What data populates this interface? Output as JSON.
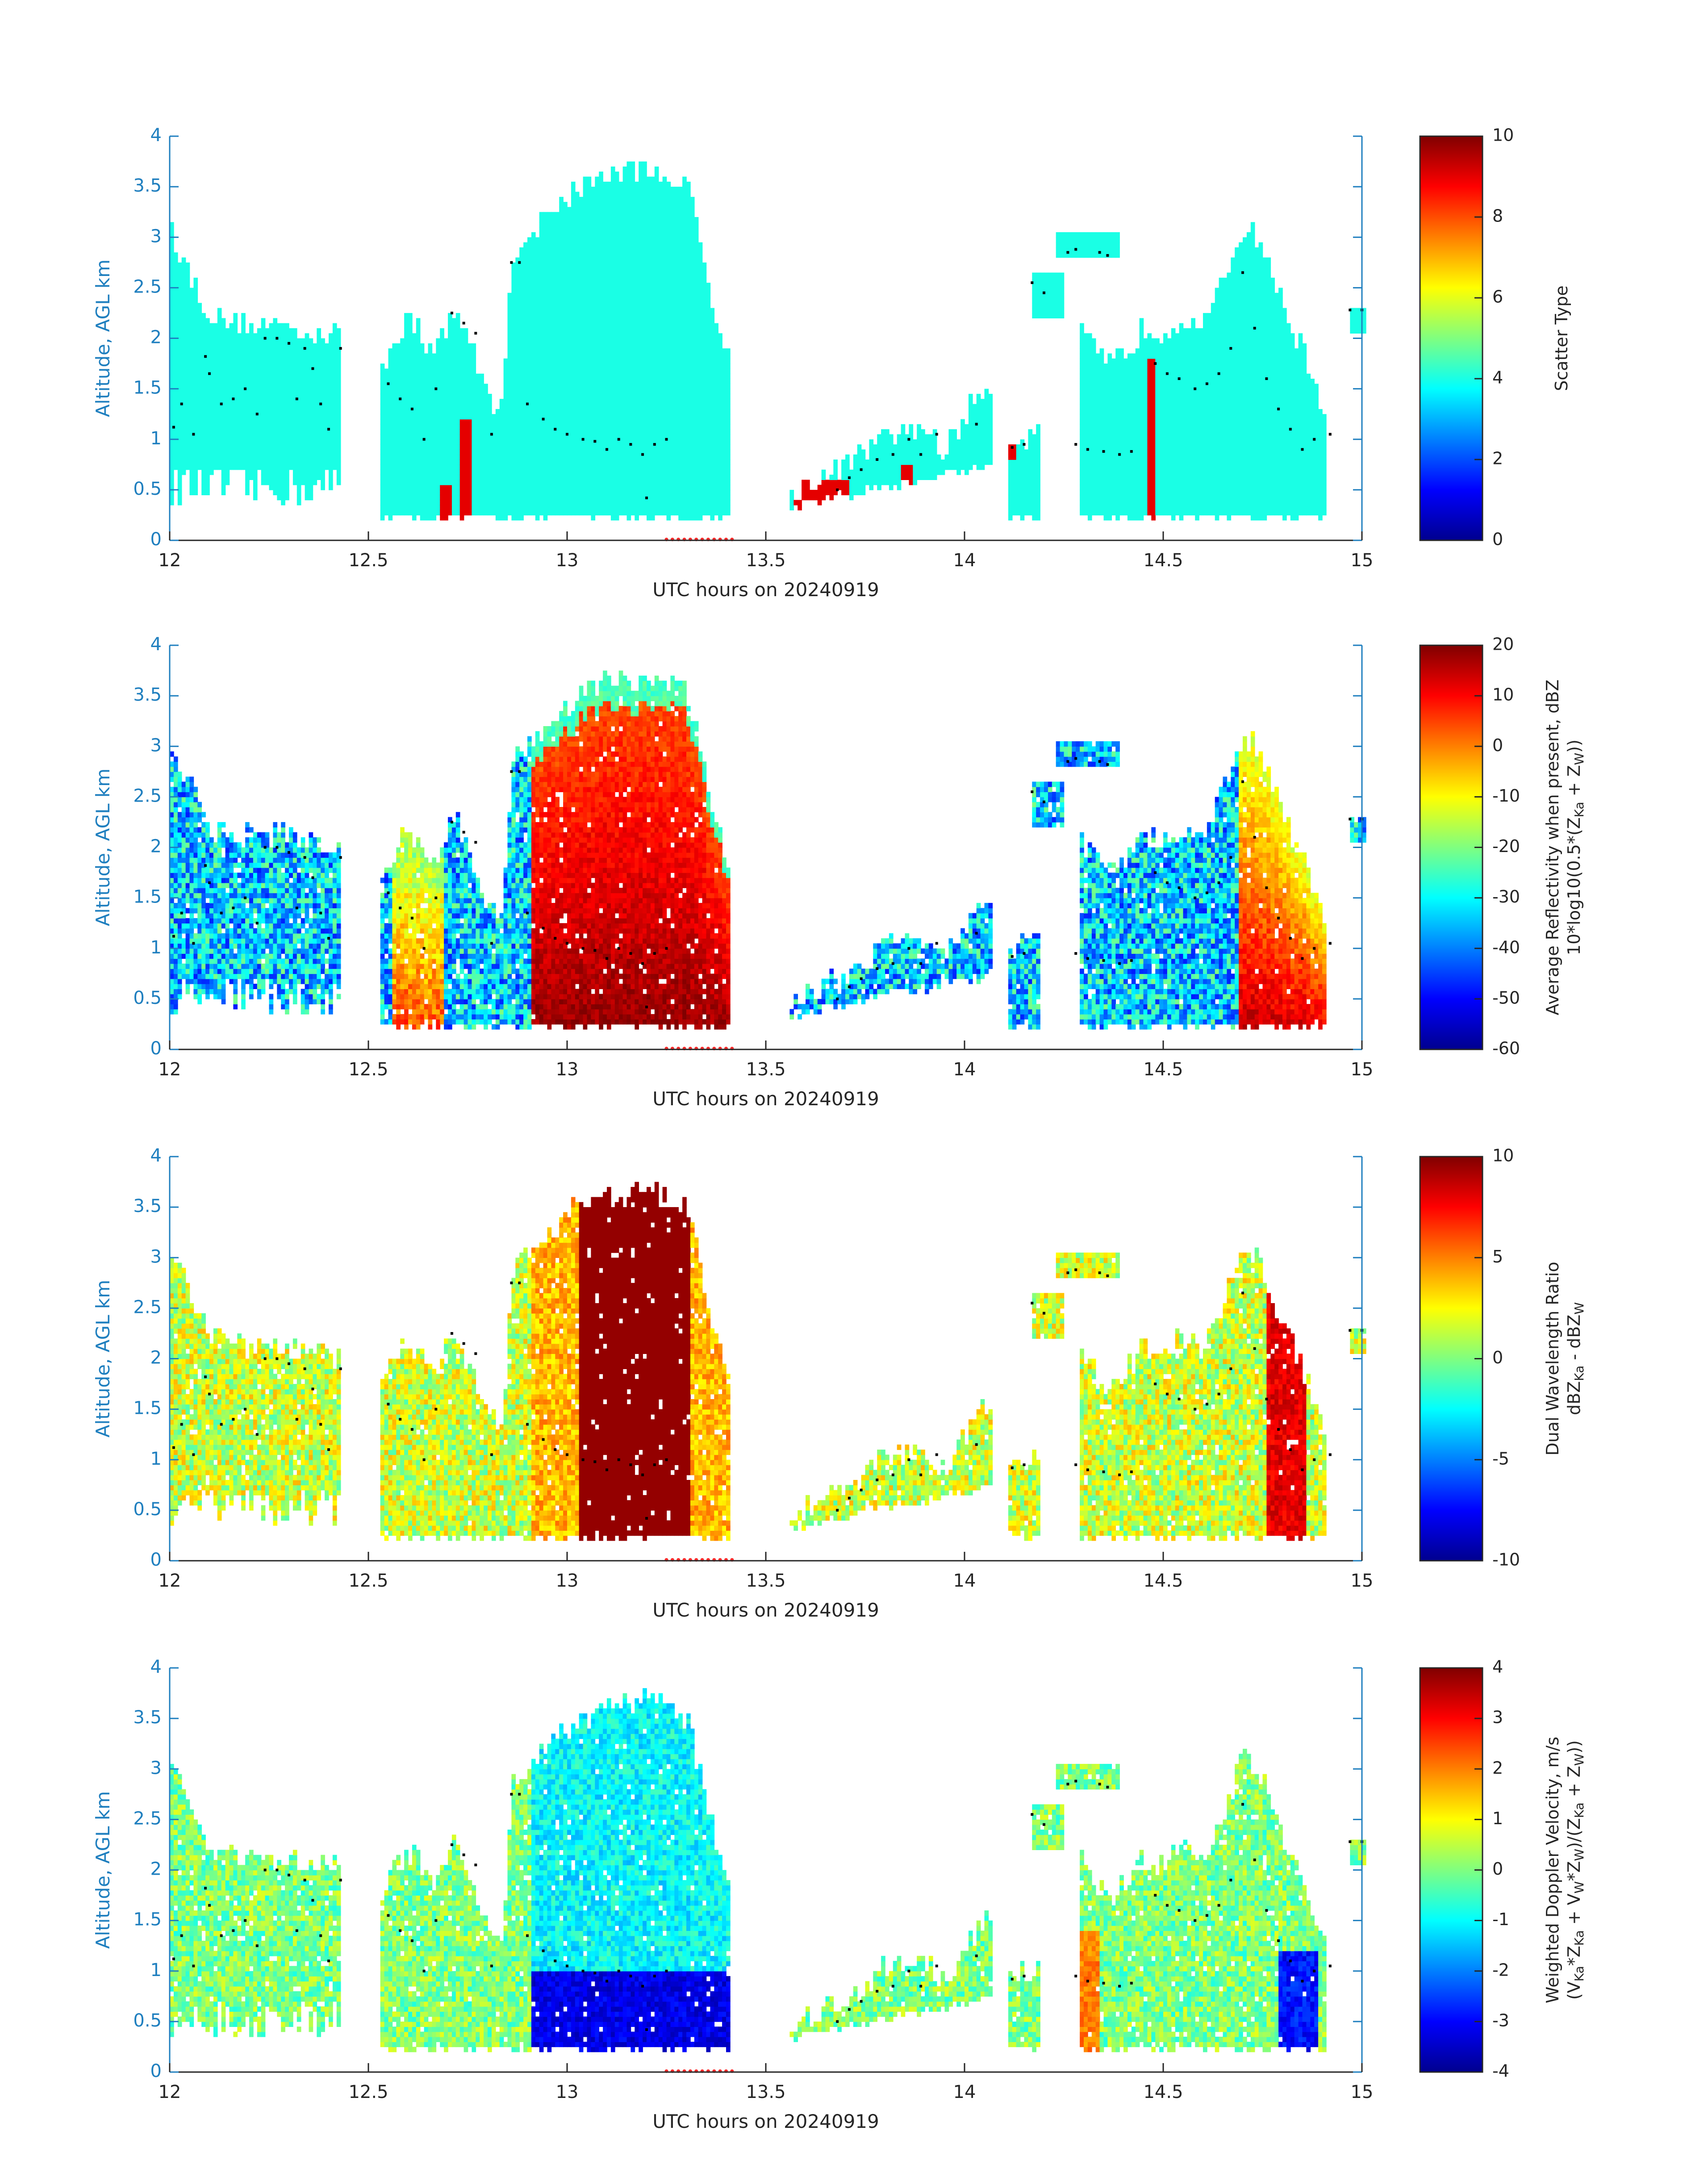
{
  "figure": {
    "x_unit_label": "UTC hours on 20240919"
  },
  "chart_data": [
    {
      "type": "heatmap",
      "panel": "scatter-type",
      "xlabel": "UTC hours on 20240919",
      "ylabel": "Altitude, AGL km",
      "xlim": [
        12,
        15
      ],
      "ylim": [
        0,
        4
      ],
      "x_ticks": [
        "12",
        "12.5",
        "13",
        "13.5",
        "14",
        "14.5",
        "15"
      ],
      "y_ticks": [
        "0",
        "0.5",
        "1",
        "1.5",
        "2",
        "2.5",
        "3",
        "3.5",
        "4"
      ],
      "colorbar": {
        "label_lines": [
          "Scatter Type"
        ],
        "range": [
          0,
          10
        ],
        "ticks": [
          "0",
          "2",
          "4",
          "6",
          "8",
          "10"
        ],
        "colormap": "jet"
      },
      "dominant_value": 4,
      "secondary_value": 9
    },
    {
      "type": "heatmap",
      "panel": "average-reflectivity",
      "xlabel": "UTC hours on 20240919",
      "ylabel": "Altitude, AGL km",
      "xlim": [
        12,
        15
      ],
      "ylim": [
        0,
        4
      ],
      "x_ticks": [
        "12",
        "12.5",
        "13",
        "13.5",
        "14",
        "14.5",
        "15"
      ],
      "y_ticks": [
        "0",
        "0.5",
        "1",
        "1.5",
        "2",
        "2.5",
        "3",
        "3.5",
        "4"
      ],
      "colorbar": {
        "label_lines": [
          "Average Reflectivity when present, dBZ",
          "10*log10(0.5*(Z",
          "Ka",
          " + Z",
          "W",
          "))"
        ],
        "range": [
          -60,
          20
        ],
        "ticks": [
          "-60",
          "-50",
          "-40",
          "-30",
          "-20",
          "-10",
          "0",
          "10",
          "20"
        ],
        "colormap": "jet"
      }
    },
    {
      "type": "heatmap",
      "panel": "dual-wavelength-ratio",
      "xlabel": "UTC hours on 20240919",
      "ylabel": "Altitude, AGL km",
      "xlim": [
        12,
        15
      ],
      "ylim": [
        0,
        4
      ],
      "x_ticks": [
        "12",
        "12.5",
        "13",
        "13.5",
        "14",
        "14.5",
        "15"
      ],
      "y_ticks": [
        "0",
        "0.5",
        "1",
        "1.5",
        "2",
        "2.5",
        "3",
        "3.5",
        "4"
      ],
      "colorbar": {
        "label_lines": [
          "Dual Wavelength Ratio",
          "dBZ",
          "Ka",
          " - dBZ",
          "W"
        ],
        "range": [
          -10,
          10
        ],
        "ticks": [
          "-10",
          "-5",
          "0",
          "5",
          "10"
        ],
        "colormap": "jet"
      }
    },
    {
      "type": "heatmap",
      "panel": "weighted-doppler-velocity",
      "xlabel": "UTC hours on 20240919",
      "ylabel": "Altitude, AGL km",
      "xlim": [
        12,
        15
      ],
      "ylim": [
        0,
        4
      ],
      "x_ticks": [
        "12",
        "12.5",
        "13",
        "13.5",
        "14",
        "14.5",
        "15"
      ],
      "y_ticks": [
        "0",
        "0.5",
        "1",
        "1.5",
        "2",
        "2.5",
        "3",
        "3.5",
        "4"
      ],
      "colorbar": {
        "label_lines": [
          "Weighted Doppler Velocity, m/s",
          "(V",
          "Ka",
          "*Z",
          "Ka",
          " + V",
          "W",
          "*Z",
          "W",
          ")/(Z",
          "Ka",
          " + Z",
          "W",
          "))"
        ],
        "range": [
          -4,
          4
        ],
        "ticks": [
          "-4",
          "-3",
          "-2",
          "-1",
          "0",
          "1",
          "2",
          "3",
          "4"
        ],
        "colormap": "jet"
      }
    }
  ],
  "cloud_base_km": [
    [
      12.01,
      1.12
    ],
    [
      12.03,
      1.35
    ],
    [
      12.06,
      1.05
    ],
    [
      12.09,
      1.82
    ],
    [
      12.1,
      1.65
    ],
    [
      12.13,
      1.35
    ],
    [
      12.16,
      1.4
    ],
    [
      12.19,
      1.5
    ],
    [
      12.22,
      1.25
    ],
    [
      12.24,
      2.0
    ],
    [
      12.27,
      2.0
    ],
    [
      12.3,
      1.95
    ],
    [
      12.32,
      1.4
    ],
    [
      12.34,
      1.9
    ],
    [
      12.36,
      1.7
    ],
    [
      12.38,
      1.35
    ],
    [
      12.4,
      1.1
    ],
    [
      12.43,
      1.9
    ],
    [
      12.55,
      1.55
    ],
    [
      12.58,
      1.4
    ],
    [
      12.61,
      1.3
    ],
    [
      12.64,
      1.0
    ],
    [
      12.67,
      1.5
    ],
    [
      12.71,
      2.25
    ],
    [
      12.74,
      2.15
    ],
    [
      12.77,
      2.05
    ],
    [
      12.81,
      1.05
    ],
    [
      12.86,
      2.75
    ],
    [
      12.88,
      2.75
    ],
    [
      12.9,
      1.35
    ],
    [
      12.94,
      1.2
    ],
    [
      12.97,
      1.1
    ],
    [
      13.0,
      1.05
    ],
    [
      13.04,
      1.0
    ],
    [
      13.07,
      0.98
    ],
    [
      13.1,
      0.9
    ],
    [
      13.13,
      1.0
    ],
    [
      13.16,
      0.95
    ],
    [
      13.19,
      0.85
    ],
    [
      13.22,
      0.95
    ],
    [
      13.25,
      1.0
    ],
    [
      13.2,
      0.42
    ],
    [
      13.68,
      0.5
    ],
    [
      13.71,
      0.62
    ],
    [
      13.74,
      0.7
    ],
    [
      13.78,
      0.8
    ],
    [
      13.82,
      0.85
    ],
    [
      13.86,
      1.0
    ],
    [
      13.89,
      0.85
    ],
    [
      13.93,
      1.05
    ],
    [
      14.03,
      1.15
    ],
    [
      14.12,
      0.92
    ],
    [
      14.15,
      0.95
    ],
    [
      14.17,
      2.55
    ],
    [
      14.2,
      2.45
    ],
    [
      14.26,
      2.85
    ],
    [
      14.28,
      2.88
    ],
    [
      14.34,
      2.85
    ],
    [
      14.36,
      2.82
    ],
    [
      14.28,
      0.95
    ],
    [
      14.31,
      0.9
    ],
    [
      14.35,
      0.88
    ],
    [
      14.39,
      0.85
    ],
    [
      14.42,
      0.88
    ],
    [
      14.48,
      1.75
    ],
    [
      14.51,
      1.65
    ],
    [
      14.54,
      1.6
    ],
    [
      14.58,
      1.5
    ],
    [
      14.61,
      1.55
    ],
    [
      14.64,
      1.65
    ],
    [
      14.67,
      1.9
    ],
    [
      14.7,
      2.65
    ],
    [
      14.73,
      2.1
    ],
    [
      14.76,
      1.6
    ],
    [
      14.79,
      1.3
    ],
    [
      14.82,
      1.1
    ],
    [
      14.85,
      0.9
    ],
    [
      14.88,
      1.0
    ],
    [
      14.92,
      1.05
    ],
    [
      14.97,
      2.28
    ],
    [
      15.0,
      2.28
    ]
  ]
}
